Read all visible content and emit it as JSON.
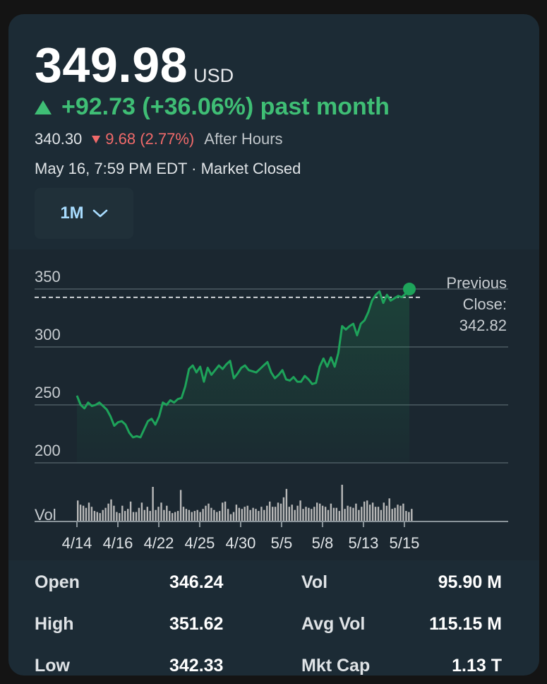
{
  "quote": {
    "price": "349.98",
    "currency": "USD",
    "change_text": "+92.73 (+36.06%) past month",
    "after_hours_price": "340.30",
    "after_hours_change": "9.68 (2.77%)",
    "after_hours_label": "After Hours",
    "timestamp_status": "May 16, 7:59 PM EDT · Market Closed"
  },
  "range_selector": {
    "label": "1M"
  },
  "colors": {
    "up": "#3fbe75",
    "down": "#f06a6a",
    "line": "#1ea35a",
    "volume": "#b8b8b8"
  },
  "chart_data": {
    "type": "line",
    "title": "",
    "y_ticks": [
      "350",
      "300",
      "250",
      "200"
    ],
    "ylim": [
      200,
      350
    ],
    "x_ticks": [
      "4/14",
      "4/16",
      "4/22",
      "4/25",
      "4/30",
      "5/5",
      "5/8",
      "5/13",
      "5/15"
    ],
    "previous_close_label": "Previous Close:",
    "previous_close": 342.82,
    "previous_close_text": "342.82",
    "volume_label": "Vol",
    "prices": [
      258,
      250,
      247,
      252,
      249,
      250,
      252,
      249,
      246,
      240,
      232,
      235,
      236,
      233,
      226,
      222,
      223,
      222,
      229,
      236,
      238,
      233,
      240,
      252,
      250,
      254,
      252,
      255,
      256,
      266,
      281,
      284,
      278,
      283,
      270,
      282,
      276,
      280,
      284,
      281,
      285,
      288,
      273,
      277,
      282,
      284,
      280,
      279,
      278,
      281,
      284,
      287,
      278,
      273,
      276,
      280,
      272,
      271,
      274,
      270,
      270,
      275,
      272,
      268,
      269,
      283,
      290,
      283,
      291,
      283,
      295,
      318,
      315,
      318,
      320,
      310,
      320,
      323,
      330,
      340,
      345,
      348,
      338,
      345,
      340,
      342,
      344,
      343,
      346,
      349.98
    ],
    "volumes": [
      40,
      32,
      30,
      26,
      36,
      28,
      20,
      18,
      16,
      22,
      26,
      34,
      42,
      30,
      18,
      16,
      30,
      20,
      24,
      38,
      18,
      18,
      26,
      36,
      22,
      28,
      20,
      66,
      22,
      28,
      36,
      22,
      30,
      20,
      16,
      18,
      20,
      60,
      28,
      24,
      22,
      18,
      20,
      22,
      18,
      24,
      30,
      34,
      26,
      22,
      18,
      20,
      36,
      38,
      24,
      14,
      18,
      32,
      26,
      24,
      28,
      30,
      22,
      26,
      24,
      20,
      28,
      22,
      30,
      38,
      28,
      28,
      36,
      34,
      46,
      62,
      28,
      32,
      22,
      30,
      40,
      24,
      28,
      26,
      24,
      28,
      36,
      34,
      30,
      28,
      22,
      34,
      26,
      26,
      20,
      70,
      24,
      30,
      28,
      26,
      34,
      22,
      28,
      38,
      40,
      32,
      36,
      28,
      28,
      22,
      36,
      30,
      44,
      24,
      26,
      32,
      30,
      34,
      20,
      18,
      24
    ]
  },
  "stats": [
    {
      "label": "Open",
      "value": "346.24",
      "label2": "Vol",
      "value2": "95.90 M"
    },
    {
      "label": "High",
      "value": "351.62",
      "label2": "Avg Vol",
      "value2": "115.15 M"
    },
    {
      "label": "Low",
      "value": "342.33",
      "label2": "Mkt Cap",
      "value2": "1.13 T"
    }
  ]
}
